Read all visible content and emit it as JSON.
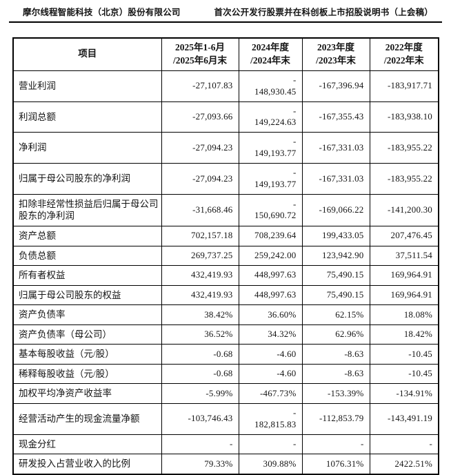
{
  "page_header": {
    "company": "摩尔线程智能科技（北京）股份有限公司",
    "document": "首次公开发行股票并在科创板上市招股说明书（上会稿）"
  },
  "table": {
    "columns": [
      "项目",
      "2025年1-6月\n/2025年6月末",
      "2024年度\n/2024年末",
      "2023年度\n/2023年末",
      "2022年度\n/2022年末"
    ],
    "rows": [
      {
        "label": "营业利润",
        "values": [
          "-27,107.83",
          "-\n148,930.45",
          "-167,396.94",
          "-183,917.71"
        ]
      },
      {
        "label": "利润总额",
        "values": [
          "-27,093.66",
          "-\n149,224.63",
          "-167,355.43",
          "-183,938.10"
        ]
      },
      {
        "label": "净利润",
        "values": [
          "-27,094.23",
          "-\n149,193.77",
          "-167,331.03",
          "-183,955.22"
        ]
      },
      {
        "label": "归属于母公司股东的净利润",
        "values": [
          "-27,094.23",
          "-\n149,193.77",
          "-167,331.03",
          "-183,955.22"
        ]
      },
      {
        "label": "扣除非经常性损益后归属于母公司股东的净利润",
        "values": [
          "-31,668.46",
          "-\n150,690.72",
          "-169,066.22",
          "-141,200.30"
        ]
      },
      {
        "label": "资产总额",
        "values": [
          "702,157.18",
          "708,239.64",
          "199,433.05",
          "207,476.45"
        ]
      },
      {
        "label": "负债总额",
        "values": [
          "269,737.25",
          "259,242.00",
          "123,942.90",
          "37,511.54"
        ]
      },
      {
        "label": "所有者权益",
        "values": [
          "432,419.93",
          "448,997.63",
          "75,490.15",
          "169,964.91"
        ]
      },
      {
        "label": "归属于母公司股东的权益",
        "values": [
          "432,419.93",
          "448,997.63",
          "75,490.15",
          "169,964.91"
        ]
      },
      {
        "label": "资产负债率",
        "values": [
          "38.42%",
          "36.60%",
          "62.15%",
          "18.08%"
        ]
      },
      {
        "label": "资产负债率（母公司）",
        "values": [
          "36.52%",
          "34.32%",
          "62.96%",
          "18.42%"
        ]
      },
      {
        "label": "基本每股收益（元/股）",
        "values": [
          "-0.68",
          "-4.60",
          "-8.63",
          "-10.45"
        ]
      },
      {
        "label": "稀释每股收益（元/股）",
        "values": [
          "-0.68",
          "-4.60",
          "-8.63",
          "-10.45"
        ]
      },
      {
        "label": "加权平均净资产收益率",
        "values": [
          "-5.99%",
          "-467.73%",
          "-153.39%",
          "-134.91%"
        ]
      },
      {
        "label": "经营活动产生的现金流量净额",
        "values": [
          "-103,746.43",
          "-\n182,815.83",
          "-112,853.79",
          "-143,491.19"
        ]
      },
      {
        "label": "现金分红",
        "values": [
          "-",
          "-",
          "-",
          "-"
        ]
      },
      {
        "label": "研发投入占营业收入的比例",
        "values": [
          "79.33%",
          "309.88%",
          "1076.31%",
          "2422.51%"
        ]
      }
    ]
  },
  "colors": {
    "border": "#000000",
    "text": "#141414",
    "background": "#ffffff"
  }
}
